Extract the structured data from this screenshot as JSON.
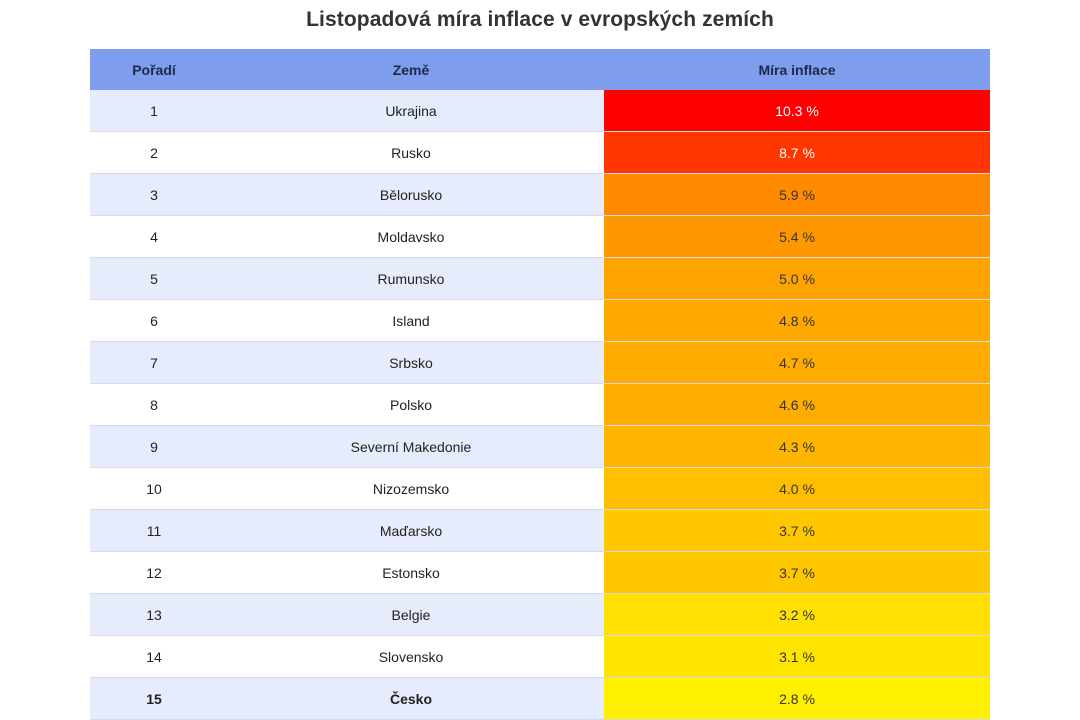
{
  "chart_data": {
    "type": "table",
    "title": "Listopadová míra inflace v evropských zemích",
    "columns": [
      "Pořadí",
      "Země",
      "Míra inflace"
    ],
    "rows": [
      {
        "rank": "1",
        "country": "Ukrajina",
        "rate": "10.3 %",
        "color": "#ff0000",
        "light": true
      },
      {
        "rank": "2",
        "country": "Rusko",
        "rate": "8.7 %",
        "color": "#ff3600",
        "light": true
      },
      {
        "rank": "3",
        "country": "Bělorusko",
        "rate": "5.9 %",
        "color": "#ff8a00",
        "light": false
      },
      {
        "rank": "4",
        "country": "Moldavsko",
        "rate": "5.4 %",
        "color": "#ff9800",
        "light": false
      },
      {
        "rank": "5",
        "country": "Rumunsko",
        "rate": "5.0 %",
        "color": "#ffa300",
        "light": false
      },
      {
        "rank": "6",
        "country": "Island",
        "rate": "4.8 %",
        "color": "#ffa800",
        "light": false
      },
      {
        "rank": "7",
        "country": "Srbsko",
        "rate": "4.7 %",
        "color": "#ffab00",
        "light": false
      },
      {
        "rank": "8",
        "country": "Polsko",
        "rate": "4.6 %",
        "color": "#ffad00",
        "light": false
      },
      {
        "rank": "9",
        "country": "Severní Makedonie",
        "rate": "4.3 %",
        "color": "#ffb600",
        "light": false
      },
      {
        "rank": "10",
        "country": "Nizozemsko",
        "rate": "4.0 %",
        "color": "#ffbe00",
        "light": false
      },
      {
        "rank": "11",
        "country": "Maďarsko",
        "rate": "3.7 %",
        "color": "#ffc700",
        "light": false
      },
      {
        "rank": "12",
        "country": "Estonsko",
        "rate": "3.7 %",
        "color": "#ffc700",
        "light": false
      },
      {
        "rank": "13",
        "country": "Belgie",
        "rate": "3.2 %",
        "color": "#ffe000",
        "light": false
      },
      {
        "rank": "14",
        "country": "Slovensko",
        "rate": "3.1 %",
        "color": "#ffe400",
        "light": false
      },
      {
        "rank": "15",
        "country": "Česko",
        "rate": "2.8 %",
        "color": "#fff000",
        "light": false,
        "bold": true
      }
    ],
    "colors": {
      "header_bg": "#7f9ded",
      "row_alt_bg": "#e6ecfb",
      "row_bg": "#ffffff"
    }
  }
}
